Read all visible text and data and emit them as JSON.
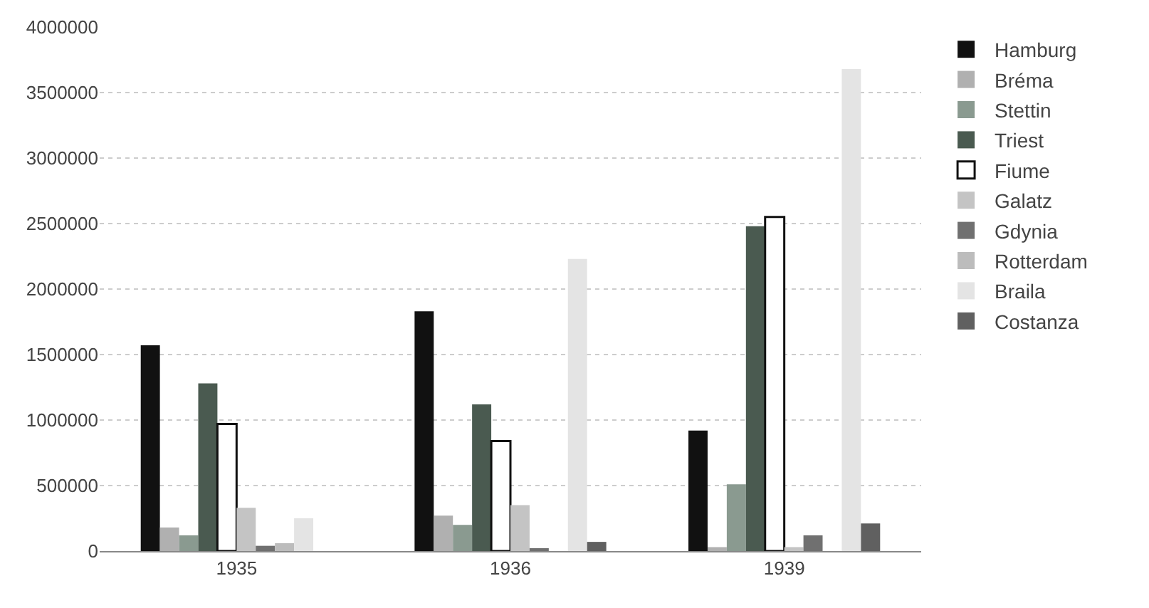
{
  "chart_data": {
    "type": "bar",
    "categories": [
      "1935",
      "1936",
      "1939"
    ],
    "series": [
      {
        "name": "Hamburg",
        "color": "#111111",
        "values": [
          1570000,
          1830000,
          920000
        ]
      },
      {
        "name": "Bréma",
        "color": "#b0b0b0",
        "values": [
          180000,
          270000,
          30000
        ]
      },
      {
        "name": "Stettin",
        "color": "#8a9a90",
        "values": [
          120000,
          200000,
          510000
        ]
      },
      {
        "name": "Triest",
        "color": "#4a5a50",
        "values": [
          1280000,
          1120000,
          2480000
        ]
      },
      {
        "name": "Fiume",
        "color": "#ffffff",
        "values": [
          970000,
          840000,
          2550000
        ]
      },
      {
        "name": "Galatz",
        "color": "#c4c4c4",
        "values": [
          330000,
          350000,
          30000
        ]
      },
      {
        "name": "Gdynia",
        "color": "#707070",
        "values": [
          40000,
          20000,
          120000
        ]
      },
      {
        "name": "Rotterdam",
        "color": "#bcbcbc",
        "values": [
          60000,
          0,
          null
        ]
      },
      {
        "name": "Braila",
        "color": "#e4e4e4",
        "values": [
          250000,
          2230000,
          3680000
        ]
      },
      {
        "name": "Costanza",
        "color": "#606060",
        "values": [
          0,
          70000,
          210000
        ]
      }
    ],
    "ylim": [
      0,
      4000000
    ],
    "yticks": [
      0,
      500000,
      1000000,
      1500000,
      2000000,
      2500000,
      3000000,
      3500000,
      4000000
    ],
    "grid": "y",
    "legend": "right"
  }
}
